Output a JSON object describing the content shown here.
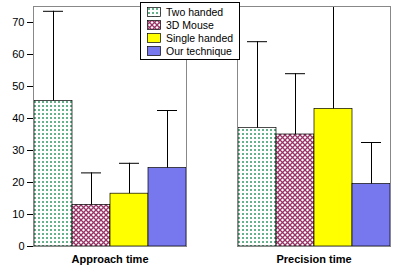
{
  "chart_data": {
    "type": "bar",
    "categories": [
      "Approach time",
      "Precision time"
    ],
    "series": [
      {
        "name": "Two handed",
        "color": "#339966",
        "values": [
          45.5,
          37
        ],
        "errors": [
          28,
          27
        ]
      },
      {
        "name": "3D Mouse",
        "color": "#993366",
        "values": [
          13,
          35
        ],
        "errors": [
          10,
          19
        ]
      },
      {
        "name": "Single handed",
        "color": "#ffff00",
        "values": [
          16.5,
          43
        ],
        "errors": [
          9.5,
          32
        ]
      },
      {
        "name": "Our technique",
        "color": "#7777ee",
        "values": [
          24.5,
          19.5
        ],
        "errors": [
          18,
          13
        ]
      }
    ],
    "ylim": [
      0,
      75
    ],
    "yticks": [
      0,
      10,
      20,
      30,
      40,
      50,
      60,
      70
    ],
    "legend": "top",
    "grid": false
  }
}
